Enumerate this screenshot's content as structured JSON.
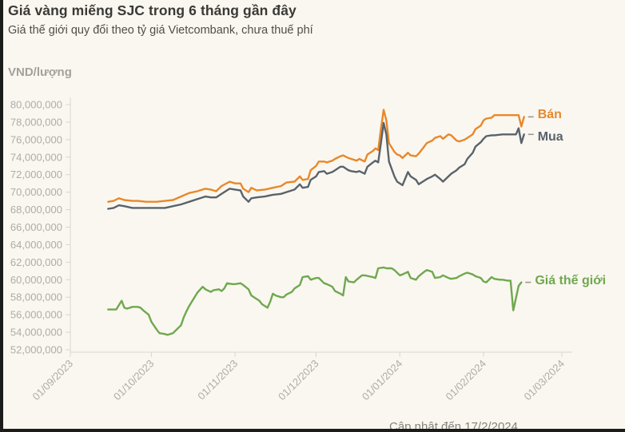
{
  "page": {
    "title": "Giá vàng miếng SJC trong 6 tháng gần đây",
    "subtitle": "Giá thế giới quy đổi theo tỷ giá Vietcombank, chưa thuế phí",
    "footer_note": "Cập nhật đến 17/2/2024"
  },
  "colors": {
    "background": "#faf7f0",
    "ban_orange": "#e8882b",
    "mua_slate": "#59636b",
    "world_green": "#6fa84f",
    "axis": "#d9d6cf",
    "tick_text": "#aeaca6"
  },
  "chart_data": {
    "type": "line",
    "title": "Giá vàng miếng SJC trong 6 tháng gần đây",
    "subtitle": "Giá thế giới quy đổi theo tỷ giá Vietcombank, chưa thuế phí",
    "ylabel": "VND/lượng",
    "update_note": "Cập nhật đến 17/2/2024",
    "grid": false,
    "legend_position": "right-of-line-ends",
    "ylim": [
      52000000,
      80000000
    ],
    "y_ticks": [
      80000000,
      78000000,
      76000000,
      74000000,
      72000000,
      70000000,
      68000000,
      66000000,
      64000000,
      62000000,
      60000000,
      58000000,
      56000000,
      54000000,
      52000000
    ],
    "x_ticks": [
      {
        "label": "01/09/2023",
        "day": 0
      },
      {
        "label": "01/10/2023",
        "day": 30
      },
      {
        "label": "01/11/2023",
        "day": 61
      },
      {
        "label": "01/12/2023",
        "day": 91
      },
      {
        "label": "01/01/2024",
        "day": 122
      },
      {
        "label": "01/02/2024",
        "day": 153
      },
      {
        "label": "01/03/2024",
        "day": 182
      }
    ],
    "x_unit": "days since 01/09/2023",
    "value_unit": "million VND per luong",
    "series": [
      {
        "name": "Bán",
        "color": "#e8882b",
        "points": [
          [
            14,
            68.9
          ],
          [
            16,
            69.0
          ],
          [
            18,
            69.3
          ],
          [
            20,
            69.1
          ],
          [
            23,
            69.0
          ],
          [
            25,
            69.0
          ],
          [
            28,
            68.9
          ],
          [
            30,
            68.9
          ],
          [
            32,
            68.9
          ],
          [
            35,
            69.0
          ],
          [
            38,
            69.1
          ],
          [
            41,
            69.5
          ],
          [
            44,
            69.9
          ],
          [
            47,
            70.1
          ],
          [
            50,
            70.4
          ],
          [
            52,
            70.3
          ],
          [
            54,
            70.1
          ],
          [
            56,
            70.7
          ],
          [
            59,
            71.2
          ],
          [
            61,
            71.0
          ],
          [
            63,
            71.0
          ],
          [
            64,
            70.4
          ],
          [
            66,
            70.0
          ],
          [
            67,
            70.5
          ],
          [
            69,
            70.2
          ],
          [
            72,
            70.3
          ],
          [
            75,
            70.5
          ],
          [
            78,
            70.7
          ],
          [
            80,
            71.1
          ],
          [
            83,
            71.2
          ],
          [
            85,
            71.8
          ],
          [
            86,
            71.4
          ],
          [
            88,
            71.5
          ],
          [
            89,
            72.5
          ],
          [
            91,
            73.0
          ],
          [
            92,
            73.5
          ],
          [
            94,
            73.5
          ],
          [
            95,
            73.4
          ],
          [
            97,
            73.6
          ],
          [
            98,
            73.8
          ],
          [
            100,
            74.1
          ],
          [
            101,
            74.2
          ],
          [
            103,
            73.9
          ],
          [
            104,
            73.8
          ],
          [
            106,
            73.6
          ],
          [
            107,
            73.8
          ],
          [
            109,
            73.5
          ],
          [
            110,
            74.3
          ],
          [
            112,
            74.7
          ],
          [
            113,
            75.0
          ],
          [
            114,
            74.8
          ],
          [
            115,
            77.2
          ],
          [
            116,
            79.4
          ],
          [
            117,
            78.2
          ],
          [
            118,
            75.6
          ],
          [
            120,
            74.6
          ],
          [
            121,
            74.3
          ],
          [
            122,
            74.2
          ],
          [
            123,
            73.9
          ],
          [
            125,
            74.5
          ],
          [
            126,
            74.2
          ],
          [
            128,
            74.1
          ],
          [
            129,
            74.4
          ],
          [
            131,
            75.2
          ],
          [
            132,
            75.6
          ],
          [
            134,
            75.9
          ],
          [
            135,
            76.2
          ],
          [
            137,
            76.4
          ],
          [
            138,
            76.1
          ],
          [
            140,
            76.6
          ],
          [
            141,
            76.5
          ],
          [
            143,
            75.9
          ],
          [
            144,
            75.8
          ],
          [
            146,
            76.0
          ],
          [
            147,
            76.2
          ],
          [
            149,
            76.6
          ],
          [
            150,
            77.2
          ],
          [
            152,
            77.6
          ],
          [
            153,
            78.2
          ],
          [
            154,
            78.4
          ],
          [
            156,
            78.5
          ],
          [
            157,
            78.8
          ],
          [
            160,
            78.8
          ],
          [
            163,
            78.8
          ],
          [
            165,
            78.8
          ],
          [
            166,
            78.8
          ],
          [
            167,
            77.5
          ],
          [
            168,
            78.6
          ]
        ]
      },
      {
        "name": "Mua",
        "color": "#59636b",
        "points": [
          [
            14,
            68.1
          ],
          [
            16,
            68.2
          ],
          [
            18,
            68.5
          ],
          [
            20,
            68.4
          ],
          [
            23,
            68.2
          ],
          [
            25,
            68.2
          ],
          [
            28,
            68.2
          ],
          [
            30,
            68.2
          ],
          [
            32,
            68.2
          ],
          [
            35,
            68.2
          ],
          [
            38,
            68.4
          ],
          [
            41,
            68.6
          ],
          [
            44,
            68.9
          ],
          [
            47,
            69.2
          ],
          [
            50,
            69.5
          ],
          [
            52,
            69.4
          ],
          [
            54,
            69.4
          ],
          [
            56,
            69.8
          ],
          [
            59,
            70.4
          ],
          [
            61,
            70.3
          ],
          [
            63,
            70.2
          ],
          [
            64,
            69.5
          ],
          [
            66,
            68.9
          ],
          [
            67,
            69.3
          ],
          [
            69,
            69.4
          ],
          [
            72,
            69.5
          ],
          [
            75,
            69.7
          ],
          [
            78,
            69.8
          ],
          [
            80,
            70.0
          ],
          [
            83,
            70.3
          ],
          [
            85,
            70.9
          ],
          [
            86,
            70.5
          ],
          [
            88,
            70.6
          ],
          [
            89,
            71.4
          ],
          [
            91,
            71.8
          ],
          [
            92,
            72.3
          ],
          [
            94,
            72.4
          ],
          [
            95,
            72.1
          ],
          [
            97,
            72.3
          ],
          [
            98,
            72.5
          ],
          [
            100,
            72.9
          ],
          [
            101,
            72.9
          ],
          [
            103,
            72.5
          ],
          [
            104,
            72.4
          ],
          [
            106,
            72.3
          ],
          [
            107,
            72.4
          ],
          [
            109,
            72.1
          ],
          [
            110,
            72.9
          ],
          [
            112,
            73.4
          ],
          [
            113,
            73.6
          ],
          [
            114,
            73.4
          ],
          [
            115,
            75.6
          ],
          [
            116,
            77.9
          ],
          [
            117,
            76.6
          ],
          [
            118,
            73.5
          ],
          [
            120,
            71.8
          ],
          [
            121,
            71.2
          ],
          [
            122,
            71.0
          ],
          [
            123,
            70.8
          ],
          [
            125,
            72.3
          ],
          [
            126,
            71.8
          ],
          [
            128,
            71.4
          ],
          [
            129,
            70.9
          ],
          [
            131,
            71.3
          ],
          [
            132,
            71.5
          ],
          [
            134,
            71.8
          ],
          [
            135,
            72.0
          ],
          [
            137,
            71.5
          ],
          [
            138,
            71.2
          ],
          [
            140,
            71.8
          ],
          [
            141,
            72.1
          ],
          [
            143,
            72.5
          ],
          [
            144,
            72.8
          ],
          [
            146,
            73.2
          ],
          [
            147,
            73.8
          ],
          [
            149,
            74.5
          ],
          [
            150,
            75.2
          ],
          [
            152,
            75.7
          ],
          [
            153,
            76.1
          ],
          [
            154,
            76.4
          ],
          [
            156,
            76.5
          ],
          [
            157,
            76.5
          ],
          [
            160,
            76.6
          ],
          [
            163,
            76.6
          ],
          [
            165,
            76.6
          ],
          [
            166,
            77.3
          ],
          [
            167,
            75.6
          ],
          [
            168,
            76.6
          ]
        ]
      },
      {
        "name": "Giá thế giới",
        "color": "#6fa84f",
        "points": [
          [
            14,
            56.6
          ],
          [
            16,
            56.6
          ],
          [
            17,
            56.6
          ],
          [
            19,
            57.6
          ],
          [
            20,
            56.8
          ],
          [
            21,
            56.7
          ],
          [
            23,
            56.9
          ],
          [
            25,
            56.9
          ],
          [
            26,
            56.8
          ],
          [
            27,
            56.5
          ],
          [
            29,
            56.0
          ],
          [
            30,
            55.2
          ],
          [
            32,
            54.3
          ],
          [
            33,
            53.9
          ],
          [
            35,
            53.8
          ],
          [
            36,
            53.7
          ],
          [
            38,
            53.9
          ],
          [
            39,
            54.2
          ],
          [
            41,
            54.8
          ],
          [
            42,
            55.7
          ],
          [
            43,
            56.4
          ],
          [
            44,
            57.0
          ],
          [
            46,
            58.0
          ],
          [
            47,
            58.5
          ],
          [
            49,
            59.2
          ],
          [
            50,
            58.9
          ],
          [
            52,
            58.6
          ],
          [
            53,
            58.8
          ],
          [
            55,
            58.9
          ],
          [
            56,
            58.7
          ],
          [
            57,
            59.0
          ],
          [
            58,
            59.6
          ],
          [
            60,
            59.5
          ],
          [
            61,
            59.5
          ],
          [
            63,
            59.6
          ],
          [
            64,
            59.4
          ],
          [
            66,
            58.9
          ],
          [
            67,
            58.2
          ],
          [
            68,
            58.0
          ],
          [
            70,
            57.6
          ],
          [
            71,
            57.2
          ],
          [
            73,
            56.8
          ],
          [
            74,
            57.5
          ],
          [
            75,
            58.4
          ],
          [
            76,
            58.2
          ],
          [
            78,
            58.0
          ],
          [
            79,
            58.0
          ],
          [
            80,
            58.3
          ],
          [
            82,
            58.6
          ],
          [
            83,
            59.0
          ],
          [
            85,
            59.4
          ],
          [
            86,
            60.3
          ],
          [
            88,
            60.4
          ],
          [
            89,
            60.0
          ],
          [
            91,
            60.2
          ],
          [
            92,
            60.2
          ],
          [
            94,
            59.6
          ],
          [
            95,
            59.5
          ],
          [
            97,
            59.2
          ],
          [
            98,
            58.7
          ],
          [
            100,
            58.4
          ],
          [
            101,
            58.2
          ],
          [
            102,
            60.3
          ],
          [
            103,
            59.8
          ],
          [
            105,
            59.7
          ],
          [
            106,
            60.0
          ],
          [
            108,
            60.5
          ],
          [
            109,
            60.5
          ],
          [
            112,
            60.3
          ],
          [
            113,
            60.2
          ],
          [
            114,
            61.3
          ],
          [
            116,
            61.4
          ],
          [
            117,
            61.3
          ],
          [
            119,
            61.3
          ],
          [
            120,
            61.1
          ],
          [
            122,
            60.5
          ],
          [
            123,
            60.6
          ],
          [
            125,
            60.9
          ],
          [
            126,
            60.2
          ],
          [
            128,
            60.0
          ],
          [
            129,
            60.4
          ],
          [
            131,
            60.9
          ],
          [
            132,
            61.1
          ],
          [
            134,
            60.9
          ],
          [
            135,
            60.2
          ],
          [
            137,
            60.3
          ],
          [
            138,
            60.5
          ],
          [
            140,
            60.2
          ],
          [
            141,
            60.1
          ],
          [
            143,
            60.2
          ],
          [
            144,
            60.4
          ],
          [
            146,
            60.7
          ],
          [
            147,
            60.8
          ],
          [
            149,
            60.6
          ],
          [
            150,
            60.4
          ],
          [
            152,
            60.2
          ],
          [
            153,
            59.8
          ],
          [
            154,
            59.7
          ],
          [
            156,
            60.3
          ],
          [
            157,
            60.1
          ],
          [
            159,
            60.0
          ],
          [
            160,
            60.0
          ],
          [
            162,
            59.9
          ],
          [
            163,
            59.9
          ],
          [
            164,
            56.5
          ],
          [
            166,
            59.3
          ],
          [
            167,
            59.7
          ]
        ]
      }
    ]
  }
}
